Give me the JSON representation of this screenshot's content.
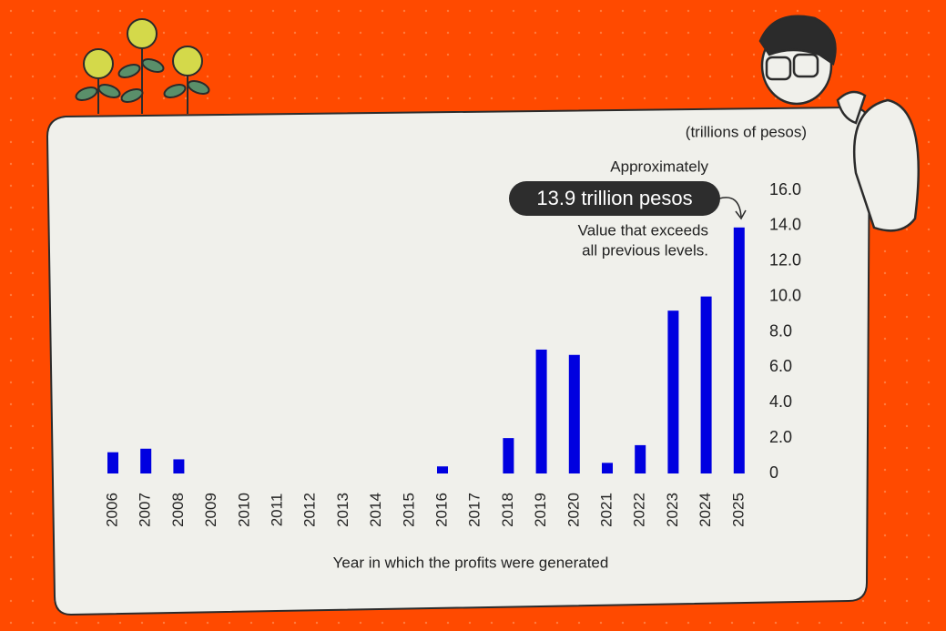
{
  "chart_data": {
    "type": "bar",
    "unit_label": "(trillions of pesos)",
    "x_label": "Year in which the profits were generated",
    "annotation": {
      "prefix": "Approximately",
      "highlight": "13.9 trillion pesos",
      "note": [
        "Value that exceeds",
        "all previous levels."
      ]
    },
    "categories": [
      "2006",
      "2007",
      "2008",
      "2009",
      "2010",
      "2011",
      "2012",
      "2013",
      "2014",
      "2015",
      "2016",
      "2017",
      "2018",
      "2019",
      "2020",
      "2021",
      "2022",
      "2023",
      "2024",
      "2025"
    ],
    "values": [
      1.2,
      1.4,
      0.8,
      0,
      0,
      0,
      0,
      0,
      0,
      0,
      0.4,
      0,
      2.0,
      7.0,
      6.7,
      0.6,
      1.6,
      9.2,
      10.0,
      13.9
    ],
    "color": "#0000e0",
    "ylim": [
      0,
      16
    ],
    "yticks": [
      0,
      {
        "value": 2,
        "label": "2.0"
      },
      {
        "value": 4,
        "label": "4.0"
      },
      {
        "value": 6,
        "label": "6.0"
      },
      {
        "value": 8,
        "label": "8.0"
      },
      {
        "value": 10,
        "label": "10.0"
      },
      {
        "value": 12,
        "label": "12.0"
      },
      {
        "value": 14,
        "label": "14.0"
      },
      {
        "value": 16,
        "label": "16.0"
      }
    ],
    "grid": false
  }
}
